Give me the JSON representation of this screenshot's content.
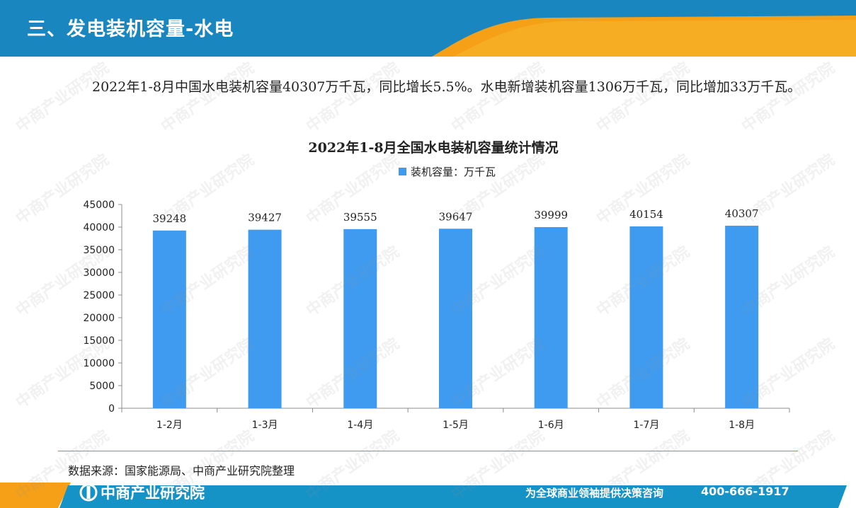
{
  "header": {
    "title": "三、发电装机容量-水电"
  },
  "intro": {
    "text": "2022年1-8月中国水电装机容量40307万千瓦，同比增长5.5%。水电新增装机容量1306万千瓦，同比增加33万千瓦。"
  },
  "chart_data": {
    "type": "bar",
    "title": "2022年1-8月全国水电装机容量统计情况",
    "legend": "装机容量：万千瓦",
    "legend_position": "top-center",
    "categories": [
      "1-2月",
      "1-3月",
      "1-4月",
      "1-5月",
      "1-6月",
      "1-7月",
      "1-8月"
    ],
    "series": [
      {
        "name": "装机容量：万千瓦",
        "values": [
          39248,
          39427,
          39555,
          39647,
          39999,
          40154,
          40307
        ]
      }
    ],
    "ylim": [
      0,
      45000
    ],
    "yticks": [
      0,
      5000,
      10000,
      15000,
      20000,
      25000,
      30000,
      35000,
      40000,
      45000
    ],
    "grid": false,
    "bar_color": "#3f9bf0"
  },
  "source": {
    "text": "数据来源：国家能源局、中商产业研究院整理"
  },
  "footer": {
    "logo_text": "中商产业研究院",
    "slogan": "为全球商业领袖提供决策咨询",
    "phone": "400-666-1917"
  },
  "colors": {
    "header_blue": "#1a86bf",
    "accent_orange": "#f5a016",
    "footer_blue": "#1592c6"
  },
  "watermark": "中商产业研究院"
}
